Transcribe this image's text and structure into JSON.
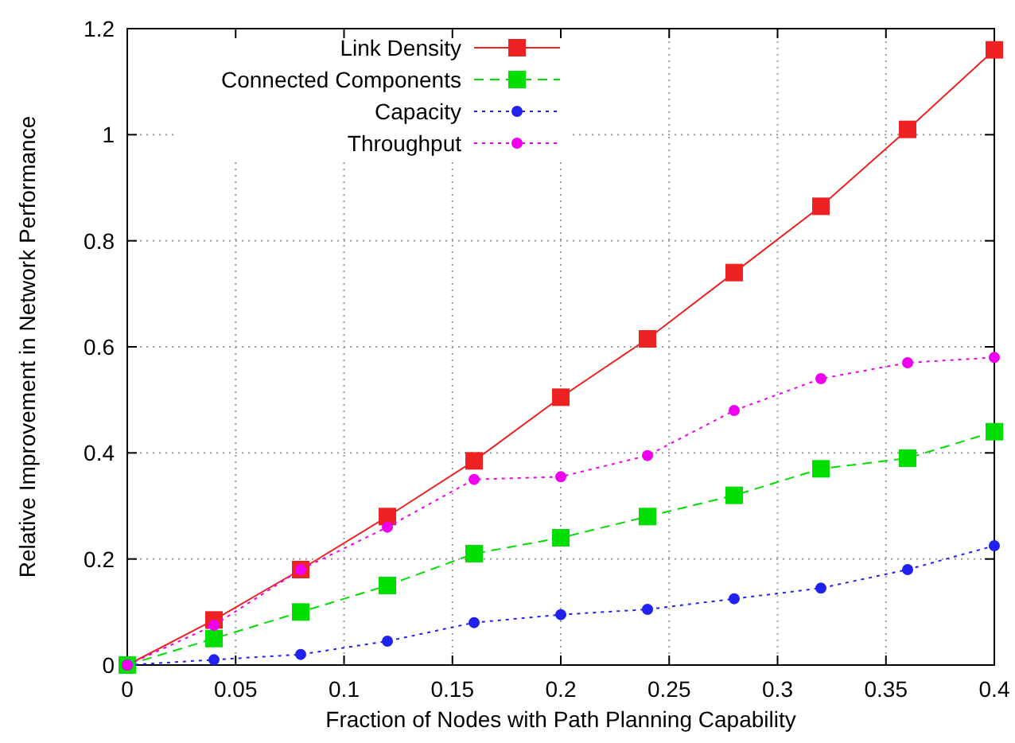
{
  "chart_data": {
    "type": "line",
    "xlabel": "Fraction of Nodes with Path Planning Capability",
    "ylabel": "Relative Improvement in Network Performance",
    "x": [
      0,
      0.04,
      0.08,
      0.12,
      0.16,
      0.2,
      0.24,
      0.28,
      0.32,
      0.36,
      0.4
    ],
    "xlim": [
      0,
      0.4
    ],
    "xticks": [
      0,
      0.05,
      0.1,
      0.15,
      0.2,
      0.25,
      0.3,
      0.35,
      0.4
    ],
    "ylim": [
      0,
      1.2
    ],
    "yticks": [
      0,
      0.2,
      0.4,
      0.6,
      0.8,
      1,
      1.2
    ],
    "grid": true,
    "legend": "top left",
    "series": [
      {
        "name": "Link Density",
        "color": "#ee2222",
        "marker": "square",
        "line_style": "solid",
        "values": [
          0,
          0.085,
          0.18,
          0.28,
          0.385,
          0.505,
          0.615,
          0.74,
          0.865,
          1.01,
          1.16
        ]
      },
      {
        "name": "Connected Components",
        "color": "#00dd00",
        "marker": "square",
        "line_style": "dashed",
        "values": [
          0,
          0.05,
          0.1,
          0.15,
          0.21,
          0.24,
          0.28,
          0.32,
          0.37,
          0.39,
          0.44
        ]
      },
      {
        "name": "Capacity",
        "color": "#2222ee",
        "marker": "circle",
        "line_style": "dotted",
        "values": [
          0,
          0.01,
          0.02,
          0.045,
          0.08,
          0.095,
          0.105,
          0.125,
          0.145,
          0.18,
          0.225
        ]
      },
      {
        "name": "Throughput",
        "color": "#ee00ee",
        "marker": "circle",
        "line_style": "dotted",
        "values": [
          0,
          0.075,
          0.18,
          0.26,
          0.35,
          0.355,
          0.395,
          0.48,
          0.54,
          0.57,
          0.58
        ]
      }
    ]
  }
}
